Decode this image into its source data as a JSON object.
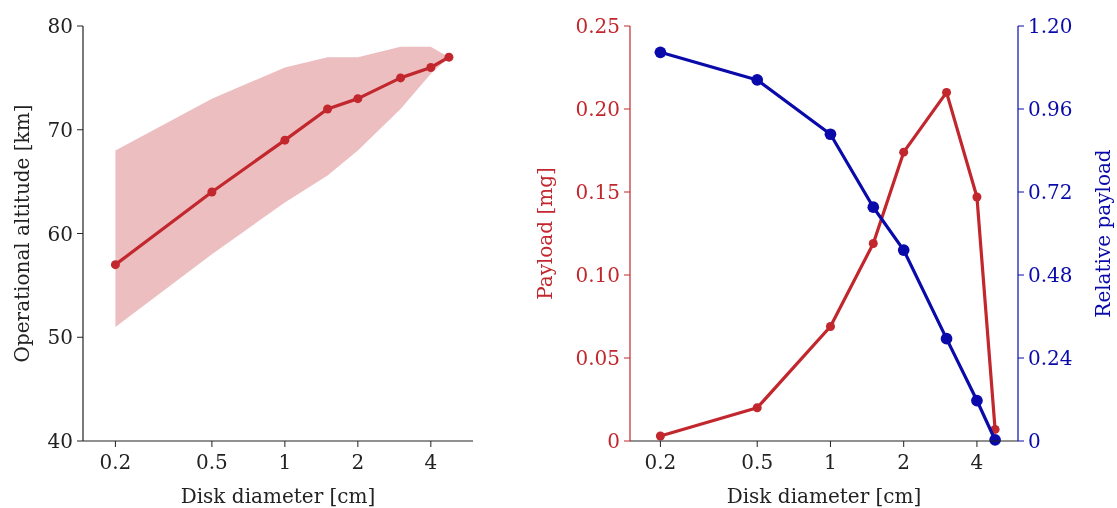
{
  "chart_data": [
    {
      "type": "line",
      "xlabel": "Disk diameter [cm]",
      "ylabel": "Operational altitude [km]",
      "log": "x",
      "marker": "circle",
      "line_style": "solid",
      "grid": false,
      "x": [
        0.2,
        0.5,
        1,
        1.5,
        2,
        3,
        4,
        4.75
      ],
      "xlim": [
        0.147,
        5.97
      ],
      "xticks": [
        0.2,
        0.5,
        1,
        2,
        4
      ],
      "ylim": [
        40,
        80
      ],
      "yticks": [
        40,
        50,
        60,
        70,
        80
      ],
      "series": [
        {
          "color": "#c1272d",
          "values": [
            57,
            64,
            69,
            72,
            73,
            75,
            76,
            77
          ],
          "lower": [
            51,
            58,
            63,
            65.6,
            68,
            72,
            75.4,
            77
          ],
          "upper": [
            68,
            73,
            76,
            77,
            77,
            78,
            78,
            77
          ]
        }
      ]
    },
    {
      "type": "line",
      "xlabel": "Disk diameter [cm]",
      "ylabel": "Payload [mg]",
      "y2label": "Relative payload",
      "log": "x",
      "marker": "circle",
      "line_style": "solid",
      "grid": false,
      "x": [
        0.2,
        0.5,
        1,
        1.5,
        2,
        3,
        4,
        4.75
      ],
      "xlim": [
        0.15,
        5.9
      ],
      "xticks": [
        0.2,
        0.5,
        1,
        2,
        4
      ],
      "ylim": [
        0,
        0.25
      ],
      "yticks": [
        {
          "value": 0,
          "label": "0"
        },
        0.05,
        {
          "value": 0.1,
          "label": "0.10"
        },
        0.15,
        {
          "value": 0.2,
          "label": "0.20"
        },
        0.25
      ],
      "y2lim": [
        0,
        1.2
      ],
      "y2ticks": [
        {
          "value": 0,
          "label": "0"
        },
        0.24,
        0.48,
        0.72,
        0.96,
        {
          "value": 1.2,
          "label": "1.20"
        }
      ],
      "series": [
        {
          "color": "#c1272d",
          "values": [
            0.003,
            0.02,
            0.069,
            0.119,
            0.174,
            0.21,
            0.147,
            0.007
          ]
        },
        {
          "color": "#0a0aaa",
          "axis": "y2",
          "values": [
            1.124,
            1.044,
            0.887,
            0.676,
            0.552,
            0.296,
            0.117,
            0.003
          ]
        }
      ]
    }
  ]
}
